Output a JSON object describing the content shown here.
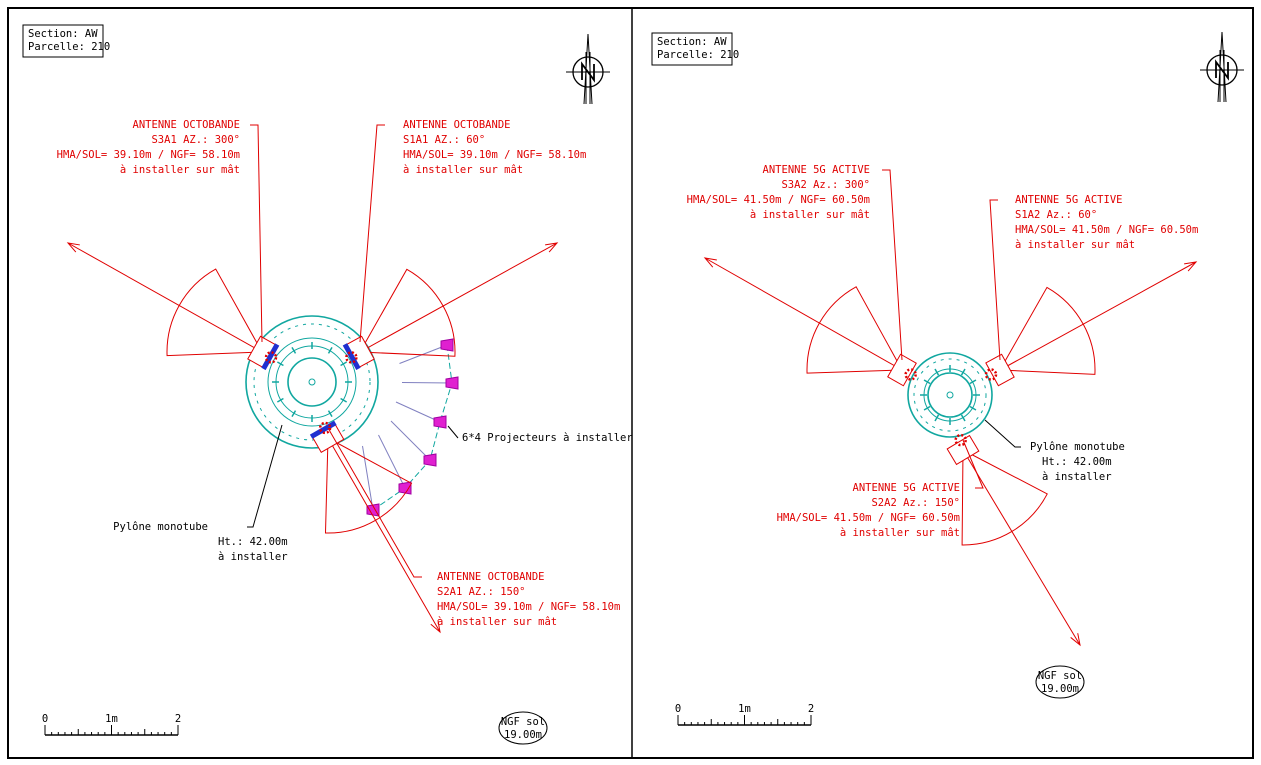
{
  "panels": [
    {
      "section": "Section: AW",
      "parcelle": "Parcelle: 210",
      "antennas": [
        {
          "lines": [
            "ANTENNE OCTOBANDE",
            "S3A1 AZ.: 300°",
            "HMA/SOL= 39.10m / NGF= 58.10m",
            "à installer sur mât"
          ]
        },
        {
          "lines": [
            "ANTENNE OCTOBANDE",
            "S1A1 AZ.: 60°",
            "HMA/SOL= 39.10m / NGF= 58.10m",
            "à installer sur mât"
          ]
        },
        {
          "lines": [
            "ANTENNE OCTOBANDE",
            "S2A1 AZ.: 150°",
            "HMA/SOL= 39.10m / NGF= 58.10m",
            "à installer sur mât"
          ]
        }
      ],
      "pylon": [
        "Pylône monotube",
        "Ht.: 42.00m",
        "à installer"
      ],
      "projectors": "6*4 Projecteurs à installer",
      "scale": [
        "0",
        "1m",
        "2"
      ],
      "ngf": [
        "NGF sol",
        "19.00m"
      ]
    },
    {
      "section": "Section: AW",
      "parcelle": "Parcelle: 210",
      "antennas": [
        {
          "lines": [
            "ANTENNE 5G ACTIVE",
            "S3A2 Az.: 300°",
            "HMA/SOL= 41.50m / NGF= 60.50m",
            "à installer sur mât"
          ]
        },
        {
          "lines": [
            "ANTENNE 5G ACTIVE",
            "S1A2 Az.: 60°",
            "HMA/SOL= 41.50m / NGF= 60.50m",
            "à installer sur mât"
          ]
        },
        {
          "lines": [
            "ANTENNE 5G ACTIVE",
            "S2A2 Az.: 150°",
            "HMA/SOL= 41.50m / NGF= 60.50m",
            "à installer sur mât"
          ]
        }
      ],
      "pylon": [
        "Pylône monotube",
        "Ht.: 42.00m",
        "à installer"
      ],
      "scale": [
        "0",
        "1m",
        "2"
      ],
      "ngf": [
        "NGF sol",
        "19.00m"
      ]
    }
  ]
}
